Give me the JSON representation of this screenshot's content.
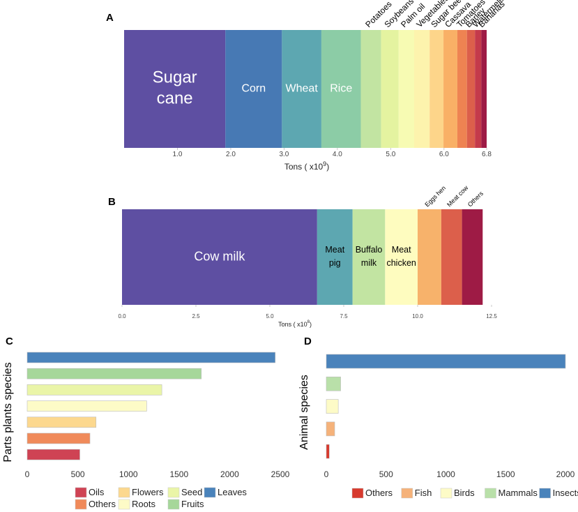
{
  "chart_data": [
    {
      "panel": "A",
      "type": "stacked-bar",
      "xlabel_prefix": "Tons ( x10",
      "xlabel_exp": "9",
      "xlabel_suffix": ")",
      "xlim": [
        0,
        6.8
      ],
      "ticks": [
        "1.0",
        "2.0",
        "3.0",
        "4.0",
        "5.0",
        "6.0",
        "6.8"
      ],
      "tick_values": [
        1,
        2,
        3,
        4,
        5,
        6,
        6.8
      ],
      "segments": [
        {
          "label": "Sugar\ncane",
          "value": 1.9,
          "color": "#5e4fa2",
          "inside": true
        },
        {
          "label": "Corn",
          "value": 1.06,
          "color": "#4779b4",
          "inside": true
        },
        {
          "label": "Wheat",
          "value": 0.74,
          "color": "#5da7b1",
          "inside": true
        },
        {
          "label": "Rice",
          "value": 0.74,
          "color": "#8ccca6",
          "inside": true
        },
        {
          "label": "Potatoes",
          "value": 0.38,
          "color": "#c2e4a2",
          "inside": false
        },
        {
          "label": "Soybeans",
          "value": 0.33,
          "color": "#e4f3a0",
          "inside": false
        },
        {
          "label": "Palm oil",
          "value": 0.29,
          "color": "#f7fbb3",
          "inside": false
        },
        {
          "label": "Vegetables",
          "value": 0.29,
          "color": "#fdf3ad",
          "inside": false
        },
        {
          "label": "Sugar beet",
          "value": 0.26,
          "color": "#fdd58a",
          "inside": false
        },
        {
          "label": "Cassava",
          "value": 0.26,
          "color": "#f9b066",
          "inside": false
        },
        {
          "label": "Tomatoes",
          "value": 0.18,
          "color": "#ee8352",
          "inside": false
        },
        {
          "label": "Barley",
          "value": 0.15,
          "color": "#dc5f4b",
          "inside": false
        },
        {
          "label": "Watermelon",
          "value": 0.12,
          "color": "#c43a4b",
          "inside": false
        },
        {
          "label": "Bananas",
          "value": 0.1,
          "color": "#9e1b45",
          "inside": false
        }
      ]
    },
    {
      "panel": "B",
      "type": "stacked-bar",
      "xlabel_prefix": "Tons ( x10",
      "xlabel_exp": "8",
      "xlabel_suffix": ")",
      "xlim": [
        0,
        12.5
      ],
      "ticks": [
        "0.0",
        "2.5",
        "5.0",
        "7.5",
        "10.0",
        "12.5"
      ],
      "tick_values": [
        0,
        2.5,
        5,
        7.5,
        10,
        12.5
      ],
      "segments": [
        {
          "label": "Cow milk",
          "value": 6.6,
          "color": "#5e4fa2",
          "inside": true
        },
        {
          "label": "Meat\npig",
          "value": 1.2,
          "color": "#5da7b1",
          "inside": true
        },
        {
          "label": "Buffalo\nmilk",
          "value": 1.1,
          "color": "#c2e4a2",
          "inside": true
        },
        {
          "label": "Meat\nchicken",
          "value": 1.1,
          "color": "#fefcbf",
          "inside": true
        },
        {
          "label": "Eggs hen",
          "value": 0.8,
          "color": "#f7b26b",
          "inside": false
        },
        {
          "label": "Meat cow",
          "value": 0.7,
          "color": "#dc5f4b",
          "inside": false
        },
        {
          "label": "Others",
          "value": 0.7,
          "color": "#9e1b45",
          "inside": false
        }
      ]
    },
    {
      "panel": "C",
      "type": "bar",
      "ylabel": "Parts plants species",
      "xlim": [
        0,
        2500
      ],
      "ticks": [
        "0",
        "500",
        "1000",
        "1500",
        "2000",
        "2500"
      ],
      "tick_values": [
        0,
        500,
        1000,
        1500,
        2000,
        2500
      ],
      "bars": [
        {
          "category": "Leaves",
          "value": 2450,
          "color": "#4a83bb"
        },
        {
          "category": "Fruits",
          "value": 1720,
          "color": "#a6d79a"
        },
        {
          "category": "Seed",
          "value": 1330,
          "color": "#eaf5a8"
        },
        {
          "category": "Roots",
          "value": 1180,
          "color": "#fdfbc7"
        },
        {
          "category": "Flowers",
          "value": 680,
          "color": "#fcd88e"
        },
        {
          "category": "Others",
          "value": 620,
          "color": "#f08a5a"
        },
        {
          "category": "Oils",
          "value": 520,
          "color": "#cf4354"
        }
      ],
      "legend": [
        [
          {
            "label": "Oils",
            "color": "#cf4354"
          },
          {
            "label": "Flowers",
            "color": "#fcd88e"
          },
          {
            "label": "Seed",
            "color": "#eaf5a8"
          },
          {
            "label": "Leaves",
            "color": "#4a83bb"
          }
        ],
        [
          {
            "label": "Others",
            "color": "#f08a5a"
          },
          {
            "label": "Roots",
            "color": "#fdfbc7"
          },
          {
            "label": "Fruits",
            "color": "#a6d79a"
          }
        ]
      ]
    },
    {
      "panel": "D",
      "type": "bar",
      "ylabel": "Animal species",
      "xlim": [
        0,
        2000
      ],
      "ticks": [
        "0",
        "500",
        "1000",
        "1500",
        "2000"
      ],
      "tick_values": [
        0,
        500,
        1000,
        1500,
        2000
      ],
      "bars": [
        {
          "category": "Insects",
          "value": 2000,
          "color": "#4a83bb"
        },
        {
          "category": "Mammals",
          "value": 120,
          "color": "#b9e0a9"
        },
        {
          "category": "Birds",
          "value": 100,
          "color": "#fdfbc7"
        },
        {
          "category": "Fish",
          "value": 70,
          "color": "#f5b27a"
        },
        {
          "category": "Others",
          "value": 25,
          "color": "#d73a2e"
        }
      ],
      "legend": [
        [
          {
            "label": "Others",
            "color": "#d73a2e"
          },
          {
            "label": "Fish",
            "color": "#f5b27a"
          },
          {
            "label": "Birds",
            "color": "#fdfbc7"
          },
          {
            "label": "Mammals",
            "color": "#b9e0a9"
          },
          {
            "label": "Insects",
            "color": "#4a83bb"
          }
        ]
      ]
    }
  ]
}
